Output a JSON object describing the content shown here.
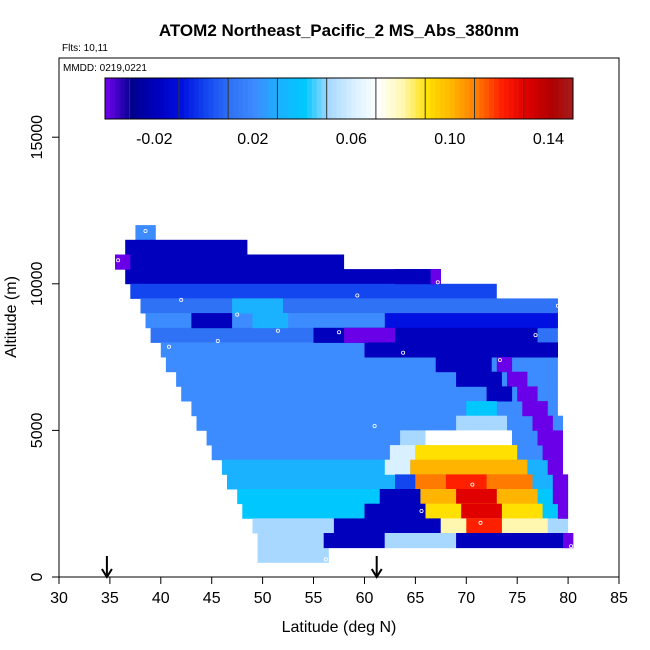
{
  "chart_data": {
    "type": "heatmap",
    "title": "ATOM2 Northeast_Pacific_2 MS_Abs_380nm",
    "flights_label": "Flts: 10,11",
    "dates_label": "MMDD: 0219,0221",
    "xlabel": "Latitude (deg N)",
    "ylabel": "Altitude (m)",
    "xlim": [
      30,
      85
    ],
    "ylim": [
      0,
      17700
    ],
    "x_ticks": [
      "30",
      "35",
      "40",
      "45",
      "50",
      "55",
      "60",
      "65",
      "70",
      "75",
      "80",
      "85"
    ],
    "y_ticks": [
      "0",
      "5000",
      "10000",
      "15000"
    ],
    "colorbar": {
      "range": [
        -0.04,
        0.15
      ],
      "tick_values": [
        -0.02,
        0.02,
        0.06,
        0.1,
        0.14
      ],
      "tick_labels": [
        "-0.02",
        "0.02",
        "0.06",
        "0.10",
        "0.14"
      ],
      "boundaries": [
        -0.04,
        -0.03,
        -0.02,
        -0.01,
        0.0,
        0.01,
        0.02,
        0.03,
        0.04,
        0.05,
        0.06,
        0.07,
        0.08,
        0.09,
        0.1,
        0.11,
        0.12,
        0.13,
        0.14,
        0.15
      ],
      "colors": [
        "#6a00e8",
        "#00008f",
        "#0000bd",
        "#0010e0",
        "#1446f0",
        "#2f72f5",
        "#3d8cff",
        "#1ab2ff",
        "#00c8ff",
        "#a8d8ff",
        "#d8f0ff",
        "#ffffff",
        "#fff7b0",
        "#ffe000",
        "#ffb400",
        "#ff7a00",
        "#ff2000",
        "#e00000",
        "#b00000",
        "#a31f1f"
      ]
    },
    "arrow_latitudes": [
      34.7,
      61.2
    ],
    "sample_points": [
      {
        "x": 38.5,
        "y": 11800
      },
      {
        "x": 35.8,
        "y": 10800
      },
      {
        "x": 67.2,
        "y": 10050
      },
      {
        "x": 59.3,
        "y": 9600
      },
      {
        "x": 42.0,
        "y": 9450
      },
      {
        "x": 79.0,
        "y": 9250
      },
      {
        "x": 47.5,
        "y": 8950
      },
      {
        "x": 51.5,
        "y": 8400
      },
      {
        "x": 57.5,
        "y": 8350
      },
      {
        "x": 76.8,
        "y": 8250
      },
      {
        "x": 45.6,
        "y": 8050
      },
      {
        "x": 40.8,
        "y": 7850
      },
      {
        "x": 63.8,
        "y": 7650
      },
      {
        "x": 73.3,
        "y": 7400
      },
      {
        "x": 61.0,
        "y": 5150
      },
      {
        "x": 70.6,
        "y": 3150
      },
      {
        "x": 65.6,
        "y": 2250
      },
      {
        "x": 71.4,
        "y": 1850
      },
      {
        "x": 80.3,
        "y": 1050
      },
      {
        "x": 56.2,
        "y": 600
      }
    ],
    "curtain": {
      "layers": [
        {
          "alt_bottom": 11500,
          "alt_top": 12000,
          "lat_start": 37.5,
          "lat_end": 39.5,
          "value": 0.02
        },
        {
          "alt_bottom": 11000,
          "alt_top": 11500,
          "lat_start": 36.5,
          "lat_end": 48.5,
          "value": -0.02
        },
        {
          "alt_bottom": 10500,
          "alt_top": 11000,
          "lat_start": 35.5,
          "lat_end": 58.0,
          "value": -0.02
        },
        {
          "alt_bottom": 10000,
          "alt_top": 10500,
          "lat_start": 36.5,
          "lat_end": 67.5,
          "value": -0.02
        },
        {
          "alt_bottom": 9500,
          "alt_top": 10000,
          "lat_start": 37.0,
          "lat_end": 73.0,
          "value": 0.0
        },
        {
          "alt_bottom": 9000,
          "alt_top": 9500,
          "lat_start": 38.0,
          "lat_end": 79.0,
          "value": 0.01
        },
        {
          "alt_bottom": 8500,
          "alt_top": 9000,
          "lat_start": 38.5,
          "lat_end": 79.0,
          "value": 0.02
        },
        {
          "alt_bottom": 8000,
          "alt_top": 8500,
          "lat_start": 39.0,
          "lat_end": 79.0,
          "value": 0.01
        },
        {
          "alt_bottom": 7500,
          "alt_top": 8000,
          "lat_start": 40.0,
          "lat_end": 79.0,
          "value": 0.02
        },
        {
          "alt_bottom": 7000,
          "alt_top": 7500,
          "lat_start": 40.5,
          "lat_end": 79.0,
          "value": 0.02
        },
        {
          "alt_bottom": 6500,
          "alt_top": 7000,
          "lat_start": 41.5,
          "lat_end": 79.0,
          "value": 0.02
        },
        {
          "alt_bottom": 6000,
          "alt_top": 6500,
          "lat_start": 42.0,
          "lat_end": 79.0,
          "value": 0.02
        },
        {
          "alt_bottom": 5500,
          "alt_top": 6000,
          "lat_start": 43.0,
          "lat_end": 79.0,
          "value": 0.02
        },
        {
          "alt_bottom": 5000,
          "alt_top": 5500,
          "lat_start": 43.5,
          "lat_end": 79.5,
          "value": 0.02
        },
        {
          "alt_bottom": 4500,
          "alt_top": 5000,
          "lat_start": 44.5,
          "lat_end": 79.5,
          "value": 0.02
        },
        {
          "alt_bottom": 4000,
          "alt_top": 4500,
          "lat_start": 45.0,
          "lat_end": 79.5,
          "value": 0.025
        },
        {
          "alt_bottom": 3500,
          "alt_top": 4000,
          "lat_start": 46.0,
          "lat_end": 79.5,
          "value": 0.03
        },
        {
          "alt_bottom": 3000,
          "alt_top": 3500,
          "lat_start": 46.5,
          "lat_end": 80.0,
          "value": 0.035
        },
        {
          "alt_bottom": 2500,
          "alt_top": 3000,
          "lat_start": 47.5,
          "lat_end": 80.0,
          "value": 0.04
        },
        {
          "alt_bottom": 2000,
          "alt_top": 2500,
          "lat_start": 48.0,
          "lat_end": 80.0,
          "value": 0.045
        },
        {
          "alt_bottom": 1500,
          "alt_top": 2000,
          "lat_start": 49.0,
          "lat_end": 80.0,
          "value": 0.05
        },
        {
          "alt_bottom": 1000,
          "alt_top": 1500,
          "lat_start": 49.5,
          "lat_end": 80.5,
          "value": 0.05
        },
        {
          "alt_bottom": 500,
          "alt_top": 1000,
          "lat_start": 49.5,
          "lat_end": 56.5,
          "value": 0.05
        }
      ],
      "patches": [
        {
          "alt_bottom": 10500,
          "alt_top": 11000,
          "lat_start": 35.5,
          "lat_end": 37.0,
          "value": -0.04
        },
        {
          "alt_bottom": 10000,
          "alt_top": 10500,
          "lat_start": 63.0,
          "lat_end": 67.5,
          "value": -0.02
        },
        {
          "alt_bottom": 10000,
          "alt_top": 10500,
          "lat_start": 66.5,
          "lat_end": 67.5,
          "value": -0.04
        },
        {
          "alt_bottom": 9000,
          "alt_top": 9500,
          "lat_start": 47.0,
          "lat_end": 52.0,
          "value": 0.03
        },
        {
          "alt_bottom": 8500,
          "alt_top": 9000,
          "lat_start": 43.0,
          "lat_end": 47.0,
          "value": -0.02
        },
        {
          "alt_bottom": 8500,
          "alt_top": 9000,
          "lat_start": 49.0,
          "lat_end": 52.5,
          "value": 0.03
        },
        {
          "alt_bottom": 8500,
          "alt_top": 9000,
          "lat_start": 62.0,
          "lat_end": 79.0,
          "value": -0.01
        },
        {
          "alt_bottom": 8000,
          "alt_top": 8500,
          "lat_start": 55.0,
          "lat_end": 77.0,
          "value": -0.02
        },
        {
          "alt_bottom": 8000,
          "alt_top": 8500,
          "lat_start": 58.0,
          "lat_end": 63.0,
          "value": -0.04
        },
        {
          "alt_bottom": 7500,
          "alt_top": 8000,
          "lat_start": 60.0,
          "lat_end": 79.0,
          "value": -0.02
        },
        {
          "alt_bottom": 7000,
          "alt_top": 7500,
          "lat_start": 67.0,
          "lat_end": 72.5,
          "value": -0.02
        },
        {
          "alt_bottom": 7000,
          "alt_top": 7500,
          "lat_start": 73.0,
          "lat_end": 74.5,
          "value": -0.04
        },
        {
          "alt_bottom": 6500,
          "alt_top": 7000,
          "lat_start": 69.0,
          "lat_end": 73.5,
          "value": -0.02
        },
        {
          "alt_bottom": 6500,
          "alt_top": 7000,
          "lat_start": 74.0,
          "lat_end": 76.0,
          "value": -0.04
        },
        {
          "alt_bottom": 6000,
          "alt_top": 6500,
          "lat_start": 72.0,
          "lat_end": 74.5,
          "value": -0.02
        },
        {
          "alt_bottom": 6000,
          "alt_top": 6500,
          "lat_start": 75.0,
          "lat_end": 77.0,
          "value": -0.04
        },
        {
          "alt_bottom": 5500,
          "alt_top": 6000,
          "lat_start": 70.0,
          "lat_end": 73.0,
          "value": 0.04
        },
        {
          "alt_bottom": 5500,
          "alt_top": 6000,
          "lat_start": 75.5,
          "lat_end": 78.0,
          "value": -0.04
        },
        {
          "alt_bottom": 5000,
          "alt_top": 5500,
          "lat_start": 69.0,
          "lat_end": 74.0,
          "value": 0.055
        },
        {
          "alt_bottom": 5000,
          "alt_top": 5500,
          "lat_start": 76.5,
          "lat_end": 78.5,
          "value": -0.04
        },
        {
          "alt_bottom": 4500,
          "alt_top": 5000,
          "lat_start": 63.5,
          "lat_end": 66.0,
          "value": 0.055
        },
        {
          "alt_bottom": 4500,
          "alt_top": 5000,
          "lat_start": 66.0,
          "lat_end": 74.5,
          "value": 0.075
        },
        {
          "alt_bottom": 4500,
          "alt_top": 5000,
          "lat_start": 77.0,
          "lat_end": 79.5,
          "value": -0.04
        },
        {
          "alt_bottom": 4000,
          "alt_top": 4500,
          "lat_start": 62.5,
          "lat_end": 65.0,
          "value": 0.065
        },
        {
          "alt_bottom": 4000,
          "alt_top": 4500,
          "lat_start": 65.0,
          "lat_end": 75.0,
          "value": 0.09
        },
        {
          "alt_bottom": 4000,
          "alt_top": 4500,
          "lat_start": 77.5,
          "lat_end": 79.5,
          "value": -0.04
        },
        {
          "alt_bottom": 3500,
          "alt_top": 4000,
          "lat_start": 62.0,
          "lat_end": 64.5,
          "value": 0.06
        },
        {
          "alt_bottom": 3500,
          "alt_top": 4000,
          "lat_start": 64.5,
          "lat_end": 76.0,
          "value": 0.105
        },
        {
          "alt_bottom": 3500,
          "alt_top": 4000,
          "lat_start": 78.0,
          "lat_end": 79.5,
          "value": -0.04
        },
        {
          "alt_bottom": 3000,
          "alt_top": 3500,
          "lat_start": 63.0,
          "lat_end": 65.0,
          "value": 0.0
        },
        {
          "alt_bottom": 3000,
          "alt_top": 3500,
          "lat_start": 65.0,
          "lat_end": 76.5,
          "value": 0.11
        },
        {
          "alt_bottom": 3000,
          "alt_top": 3500,
          "lat_start": 68.0,
          "lat_end": 72.0,
          "value": 0.125
        },
        {
          "alt_bottom": 3000,
          "alt_top": 3500,
          "lat_start": 78.5,
          "lat_end": 80.0,
          "value": -0.04
        },
        {
          "alt_bottom": 2500,
          "alt_top": 3000,
          "lat_start": 61.5,
          "lat_end": 65.5,
          "value": -0.02
        },
        {
          "alt_bottom": 2500,
          "alt_top": 3000,
          "lat_start": 65.5,
          "lat_end": 77.0,
          "value": 0.1
        },
        {
          "alt_bottom": 2500,
          "alt_top": 3000,
          "lat_start": 69.0,
          "lat_end": 73.0,
          "value": 0.13
        },
        {
          "alt_bottom": 2500,
          "alt_top": 3000,
          "lat_start": 78.5,
          "lat_end": 80.0,
          "value": -0.04
        },
        {
          "alt_bottom": 2000,
          "alt_top": 2500,
          "lat_start": 60.0,
          "lat_end": 66.0,
          "value": -0.02
        },
        {
          "alt_bottom": 2000,
          "alt_top": 2500,
          "lat_start": 66.0,
          "lat_end": 77.5,
          "value": 0.095
        },
        {
          "alt_bottom": 2000,
          "alt_top": 2500,
          "lat_start": 69.5,
          "lat_end": 73.5,
          "value": 0.135
        },
        {
          "alt_bottom": 2000,
          "alt_top": 2500,
          "lat_start": 79.0,
          "lat_end": 80.0,
          "value": -0.04
        },
        {
          "alt_bottom": 1500,
          "alt_top": 2000,
          "lat_start": 57.0,
          "lat_end": 67.5,
          "value": -0.02
        },
        {
          "alt_bottom": 1500,
          "alt_top": 2000,
          "lat_start": 67.5,
          "lat_end": 78.0,
          "value": 0.085
        },
        {
          "alt_bottom": 1500,
          "alt_top": 2000,
          "lat_start": 70.0,
          "lat_end": 73.5,
          "value": 0.12
        },
        {
          "alt_bottom": 1000,
          "alt_top": 1500,
          "lat_start": 56.0,
          "lat_end": 62.0,
          "value": -0.02
        },
        {
          "alt_bottom": 1000,
          "alt_top": 1500,
          "lat_start": 62.0,
          "lat_end": 69.0,
          "value": 0.055
        },
        {
          "alt_bottom": 1000,
          "alt_top": 1500,
          "lat_start": 69.0,
          "lat_end": 80.5,
          "value": -0.02
        },
        {
          "alt_bottom": 1000,
          "alt_top": 1500,
          "lat_start": 79.5,
          "lat_end": 80.5,
          "value": -0.04
        }
      ]
    }
  }
}
